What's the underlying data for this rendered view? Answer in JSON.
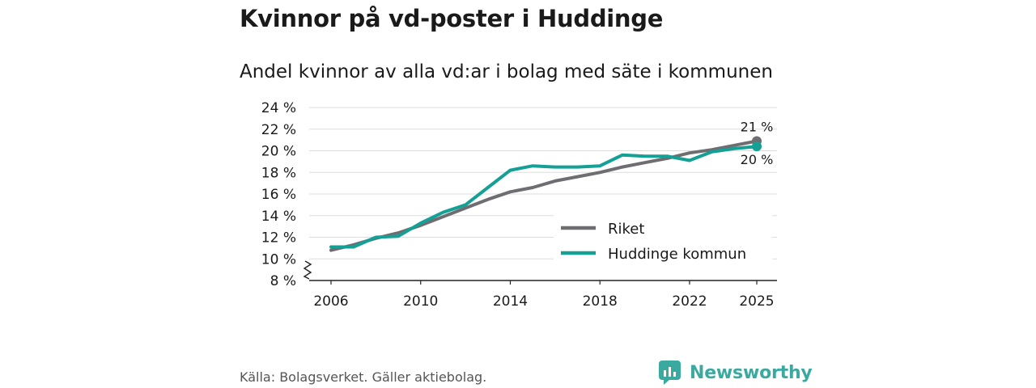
{
  "header": {
    "title": "Kvinnor på vd-poster i Huddinge",
    "subtitle": "Andel kvinnor av alla vd:ar i bolag med säte i kommunen"
  },
  "footer": {
    "source": "Källa: Bolagsverket. Gäller aktiebolag.",
    "brand": "Newsworthy"
  },
  "colors": {
    "riket": "#6e6d72",
    "huddinge": "#15a096",
    "grid": "#dddddd",
    "brand": "#3aa9a0"
  },
  "icons": {
    "brand_logo": "bar-chart-icon",
    "axis_break": "zigzag-break-icon"
  },
  "chart_data": {
    "type": "line",
    "title": "Kvinnor på vd-poster i Huddinge",
    "subtitle": "Andel kvinnor av alla vd:ar i bolag med säte i kommunen",
    "xlabel": "",
    "ylabel": "",
    "x": [
      2006,
      2007,
      2008,
      2009,
      2010,
      2011,
      2012,
      2013,
      2014,
      2015,
      2016,
      2017,
      2018,
      2019,
      2020,
      2021,
      2022,
      2023,
      2024,
      2025
    ],
    "xticks": [
      2006,
      2010,
      2014,
      2018,
      2022,
      2025
    ],
    "xtick_labels": [
      "2006",
      "2010",
      "2014",
      "2018",
      "2022",
      "2025"
    ],
    "ylim": [
      8,
      24
    ],
    "yticks": [
      8,
      10,
      12,
      14,
      16,
      18,
      20,
      22,
      24
    ],
    "ytick_labels": [
      "8 %",
      "10 %",
      "12 %",
      "14 %",
      "16 %",
      "18 %",
      "20 %",
      "22 %",
      "24 %"
    ],
    "axis_break": true,
    "grid": true,
    "legend_position": "bottom-right",
    "series": [
      {
        "name": "Riket",
        "values": [
          10.8,
          11.3,
          11.9,
          12.4,
          13.1,
          13.9,
          14.7,
          15.5,
          16.2,
          16.6,
          17.2,
          17.6,
          18.0,
          18.5,
          18.9,
          19.3,
          19.8,
          20.1,
          20.5,
          20.9
        ],
        "end_label": "21 %"
      },
      {
        "name": "Huddinge kommun",
        "values": [
          11.1,
          11.1,
          12.0,
          12.1,
          13.3,
          14.3,
          15.0,
          16.6,
          18.2,
          18.6,
          18.5,
          18.5,
          18.6,
          19.6,
          19.5,
          19.5,
          19.1,
          19.9,
          20.2,
          20.4
        ],
        "end_label": "20 %"
      }
    ]
  }
}
